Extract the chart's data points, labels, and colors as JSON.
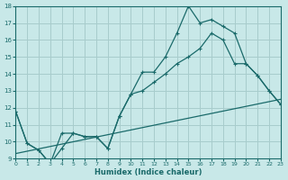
{
  "xlabel": "Humidex (Indice chaleur)",
  "bg_color": "#c8e8e8",
  "grid_color": "#a8cccc",
  "line_color": "#1a6a6a",
  "xlim": [
    0,
    23
  ],
  "ylim": [
    9,
    18
  ],
  "xticks": [
    0,
    1,
    2,
    3,
    4,
    5,
    6,
    7,
    8,
    9,
    10,
    11,
    12,
    13,
    14,
    15,
    16,
    17,
    18,
    19,
    20,
    21,
    22,
    23
  ],
  "yticks": [
    9,
    10,
    11,
    12,
    13,
    14,
    15,
    16,
    17,
    18
  ],
  "line1_x": [
    0,
    1,
    2,
    3,
    4,
    5,
    6,
    7,
    8,
    9,
    10,
    11,
    12,
    13,
    14,
    15,
    16,
    17,
    18,
    19,
    20,
    21,
    22,
    23
  ],
  "line1_y": [
    11.8,
    9.9,
    9.5,
    8.7,
    10.5,
    10.5,
    10.3,
    10.3,
    9.6,
    11.5,
    12.8,
    14.1,
    14.1,
    15.0,
    16.4,
    18.0,
    17.0,
    17.2,
    16.8,
    16.4,
    14.6,
    13.9,
    13.0,
    12.2
  ],
  "line2_x": [
    0,
    23
  ],
  "line2_y": [
    9.3,
    12.5
  ],
  "line3_x": [
    0,
    1,
    2,
    3,
    4,
    5,
    6,
    7,
    8,
    9,
    10,
    11,
    12,
    13,
    14,
    15,
    16,
    17,
    18,
    19,
    20,
    21,
    22,
    23
  ],
  "line3_y": [
    11.8,
    9.9,
    9.5,
    8.7,
    9.6,
    10.5,
    10.3,
    10.3,
    9.6,
    11.5,
    12.8,
    13.0,
    13.5,
    14.0,
    14.6,
    15.0,
    15.5,
    16.4,
    16.0,
    14.6,
    14.6,
    13.9,
    13.0,
    12.2
  ]
}
